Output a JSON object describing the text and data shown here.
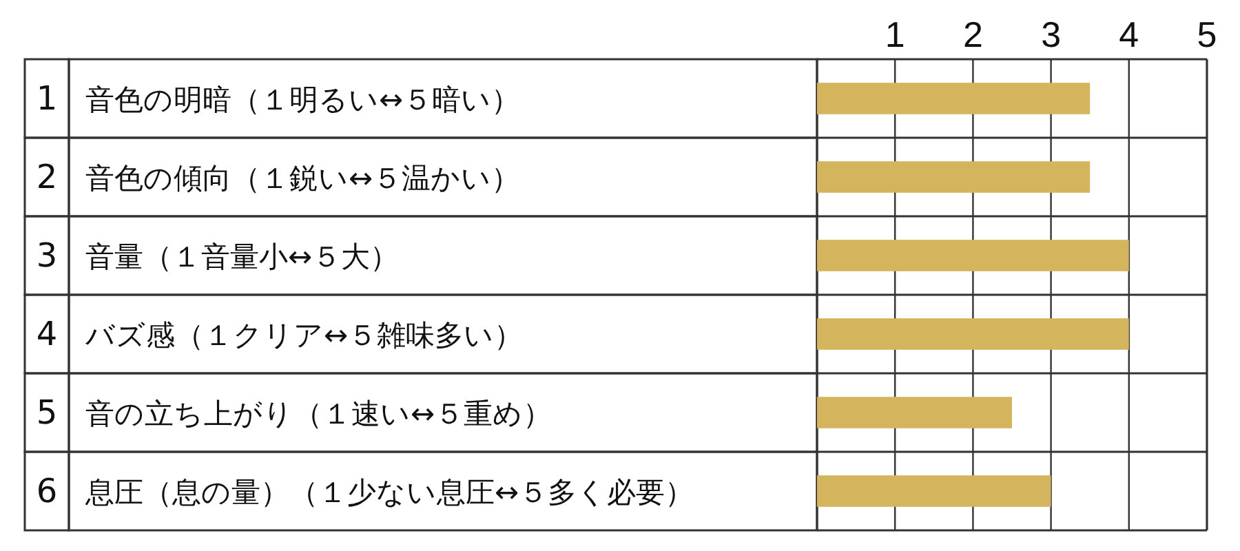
{
  "chart_data": {
    "type": "bar",
    "orientation": "horizontal",
    "categories": [
      "1 音色の明暗（１明るい↔５暗い）",
      "2 音色の傾向（１鋭い↔５温かい）",
      "3 音量（１音量小↔５大）",
      "4 バズ感（１クリア↔５雑味多い）",
      "5 音の立ち上がり（１速い↔５重め）",
      "6 息圧（息の量）（１少ない息圧↔５多く必要）"
    ],
    "values": [
      3.5,
      3.5,
      4,
      4,
      2.5,
      3
    ],
    "color": "#d4b55e",
    "xlim": [
      0,
      5
    ],
    "xticks": [
      1,
      2,
      3,
      4,
      5
    ],
    "grid": "x"
  }
}
